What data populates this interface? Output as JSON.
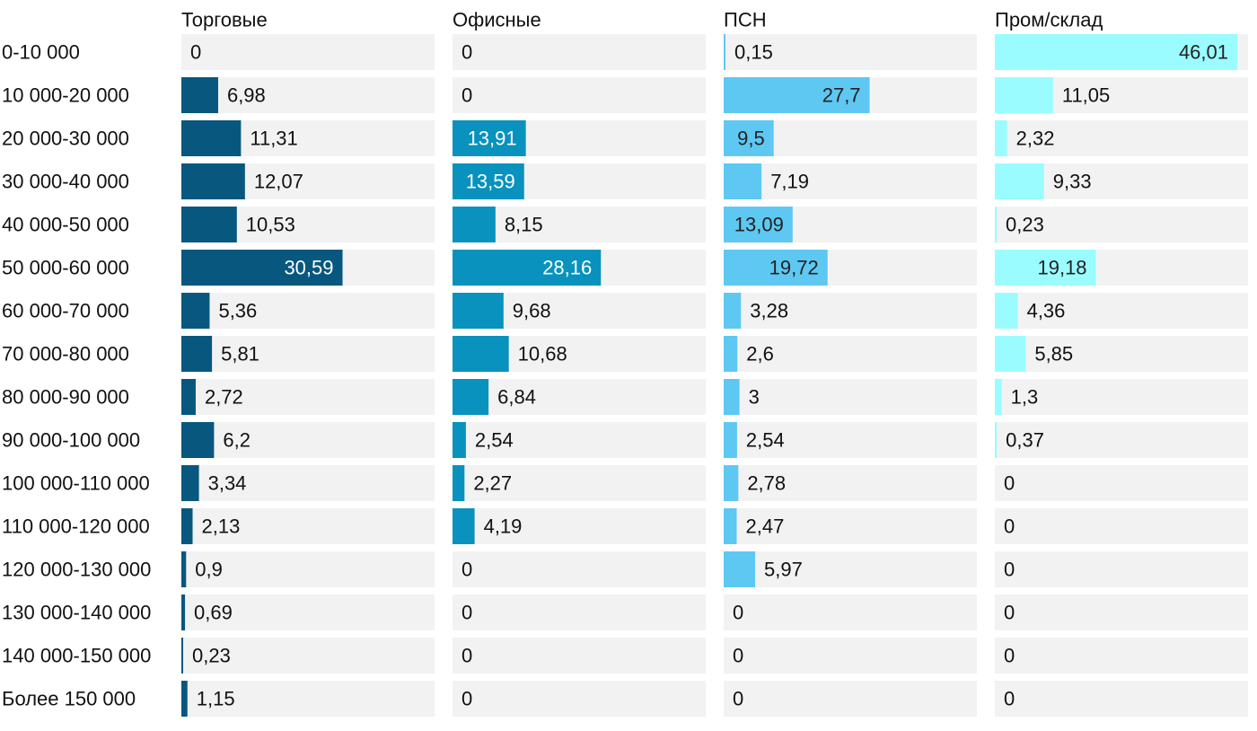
{
  "chart_data": {
    "type": "bar",
    "orientation": "horizontal",
    "layout": "small-multiples",
    "title": "",
    "categories": [
      "0-10 000",
      "10 000-20 000",
      "20 000-30 000",
      "30 000-40 000",
      "40 000-50 000",
      "50 000-60 000",
      "60 000-70 000",
      "70 000-80 000",
      "80 000-90 000",
      "90 000-100 000",
      "100 000-110 000",
      "110 000-120 000",
      "120 000-130 000",
      "130 000-140 000",
      "140 000-150 000",
      "Более 150 000"
    ],
    "series": [
      {
        "name": "Торговые",
        "color": "#08577f",
        "values": [
          0,
          6.98,
          11.31,
          12.07,
          10.53,
          30.59,
          5.36,
          5.81,
          2.72,
          6.2,
          3.34,
          2.13,
          0.9,
          0.69,
          0.23,
          1.15
        ],
        "labels": [
          "0",
          "6,98",
          "11,31",
          "12,07",
          "10,53",
          "30,59",
          "5,36",
          "5,81",
          "2,72",
          "6,2",
          "3,34",
          "2,13",
          "0,9",
          "0,69",
          "0,23",
          "1,15"
        ]
      },
      {
        "name": "Офисные",
        "color": "#0892bd",
        "values": [
          0,
          0,
          13.91,
          13.59,
          8.15,
          28.16,
          9.68,
          10.68,
          6.84,
          2.54,
          2.27,
          4.19,
          0,
          0,
          0,
          0
        ],
        "labels": [
          "0",
          "0",
          "13,91",
          "13,59",
          "8,15",
          "28,16",
          "9,68",
          "10,68",
          "6,84",
          "2,54",
          "2,27",
          "4,19",
          "0",
          "0",
          "0",
          "0"
        ]
      },
      {
        "name": "ПСН",
        "color": "#5ec8f2",
        "values": [
          0.15,
          27.7,
          9.5,
          7.19,
          13.09,
          19.72,
          3.28,
          2.6,
          3,
          2.54,
          2.78,
          2.47,
          5.97,
          0,
          0,
          0
        ],
        "labels": [
          "0,15",
          "27,7",
          "9,5",
          "7,19",
          "13,09",
          "19,72",
          "3,28",
          "2,6",
          "3",
          "2,54",
          "2,78",
          "2,47",
          "5,97",
          "0",
          "0",
          "0"
        ]
      },
      {
        "name": "Пром/склад",
        "color": "#9afcff",
        "values": [
          46.01,
          11.05,
          2.32,
          9.33,
          0.23,
          19.18,
          4.36,
          5.85,
          1.3,
          0.37,
          0,
          0,
          0,
          0,
          0,
          0
        ],
        "labels": [
          "46,01",
          "11,05",
          "2,32",
          "9,33",
          "0,23",
          "19,18",
          "4,36",
          "5,85",
          "1,3",
          "0,37",
          "0",
          "0",
          "0",
          "0",
          "0",
          "0"
        ]
      }
    ],
    "track_color": "#f2f2f2",
    "grid": false,
    "legend": "none"
  }
}
